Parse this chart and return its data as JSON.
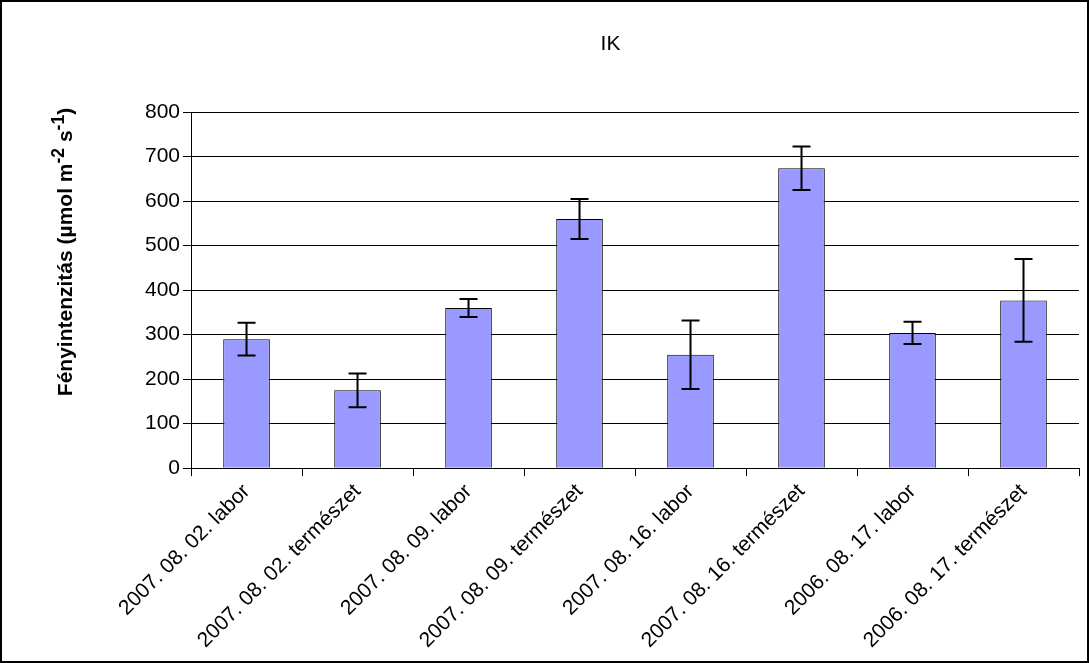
{
  "chart_data": {
    "type": "bar",
    "title": "IK",
    "ylabel": "Fényintenzitás (µmol m$^{-2}$ s$^{-1}$)",
    "categories": [
      "2007. 08. 02. labor",
      "2007. 08. 02. természet",
      "2007. 08. 09. labor",
      "2007. 08. 09. természet",
      "2007. 08. 16. labor",
      "2007. 08. 16. természet",
      "2006. 08. 17. labor",
      "2006. 08. 17. természet"
    ],
    "values": [
      290,
      175,
      360,
      560,
      255,
      674,
      304,
      377
    ],
    "errors": [
      37,
      38,
      20,
      45,
      77,
      49,
      25,
      93
    ],
    "color": "#9999ff",
    "ylim": [
      0,
      800
    ],
    "yticks": [
      0,
      100,
      200,
      300,
      400,
      500,
      600,
      700,
      800
    ],
    "grid": "y",
    "legend": false
  }
}
